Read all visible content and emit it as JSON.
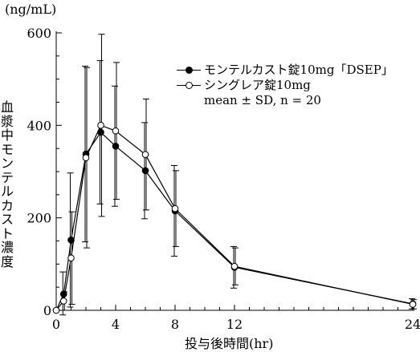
{
  "chart_data": {
    "type": "line",
    "unit_label": "(ng/mL)",
    "xlabel": "投与後時間(hr)",
    "ylabel": "血漿中モンテルカスト濃度",
    "xlim": [
      0,
      24
    ],
    "ylim": [
      0,
      600
    ],
    "xticks": [
      0,
      4,
      8,
      12,
      24
    ],
    "yticks": [
      0,
      200,
      400,
      600
    ],
    "legend_position": "top-right",
    "legend_note": "mean ± SD, n = 20",
    "grid": false,
    "series": [
      {
        "name": "モンテルカスト錠10mg「DSEP」",
        "marker": "filled-circle",
        "x": [
          0,
          0.5,
          1,
          2,
          3,
          4,
          6,
          8,
          12,
          24
        ],
        "y": [
          0,
          35,
          152,
          338,
          385,
          355,
          302,
          215,
          93,
          14
        ],
        "sd": [
          0,
          48,
          145,
          190,
          155,
          130,
          104,
          98,
          45,
          11
        ]
      },
      {
        "name": "シングレア錠10mg",
        "marker": "open-circle",
        "x": [
          0,
          0.5,
          1,
          2,
          3,
          4,
          6,
          8,
          12,
          24
        ],
        "y": [
          0,
          20,
          113,
          330,
          400,
          388,
          337,
          220,
          95,
          13
        ],
        "sd": [
          0,
          20,
          100,
          195,
          197,
          148,
          120,
          82,
          40,
          10
        ]
      }
    ]
  }
}
